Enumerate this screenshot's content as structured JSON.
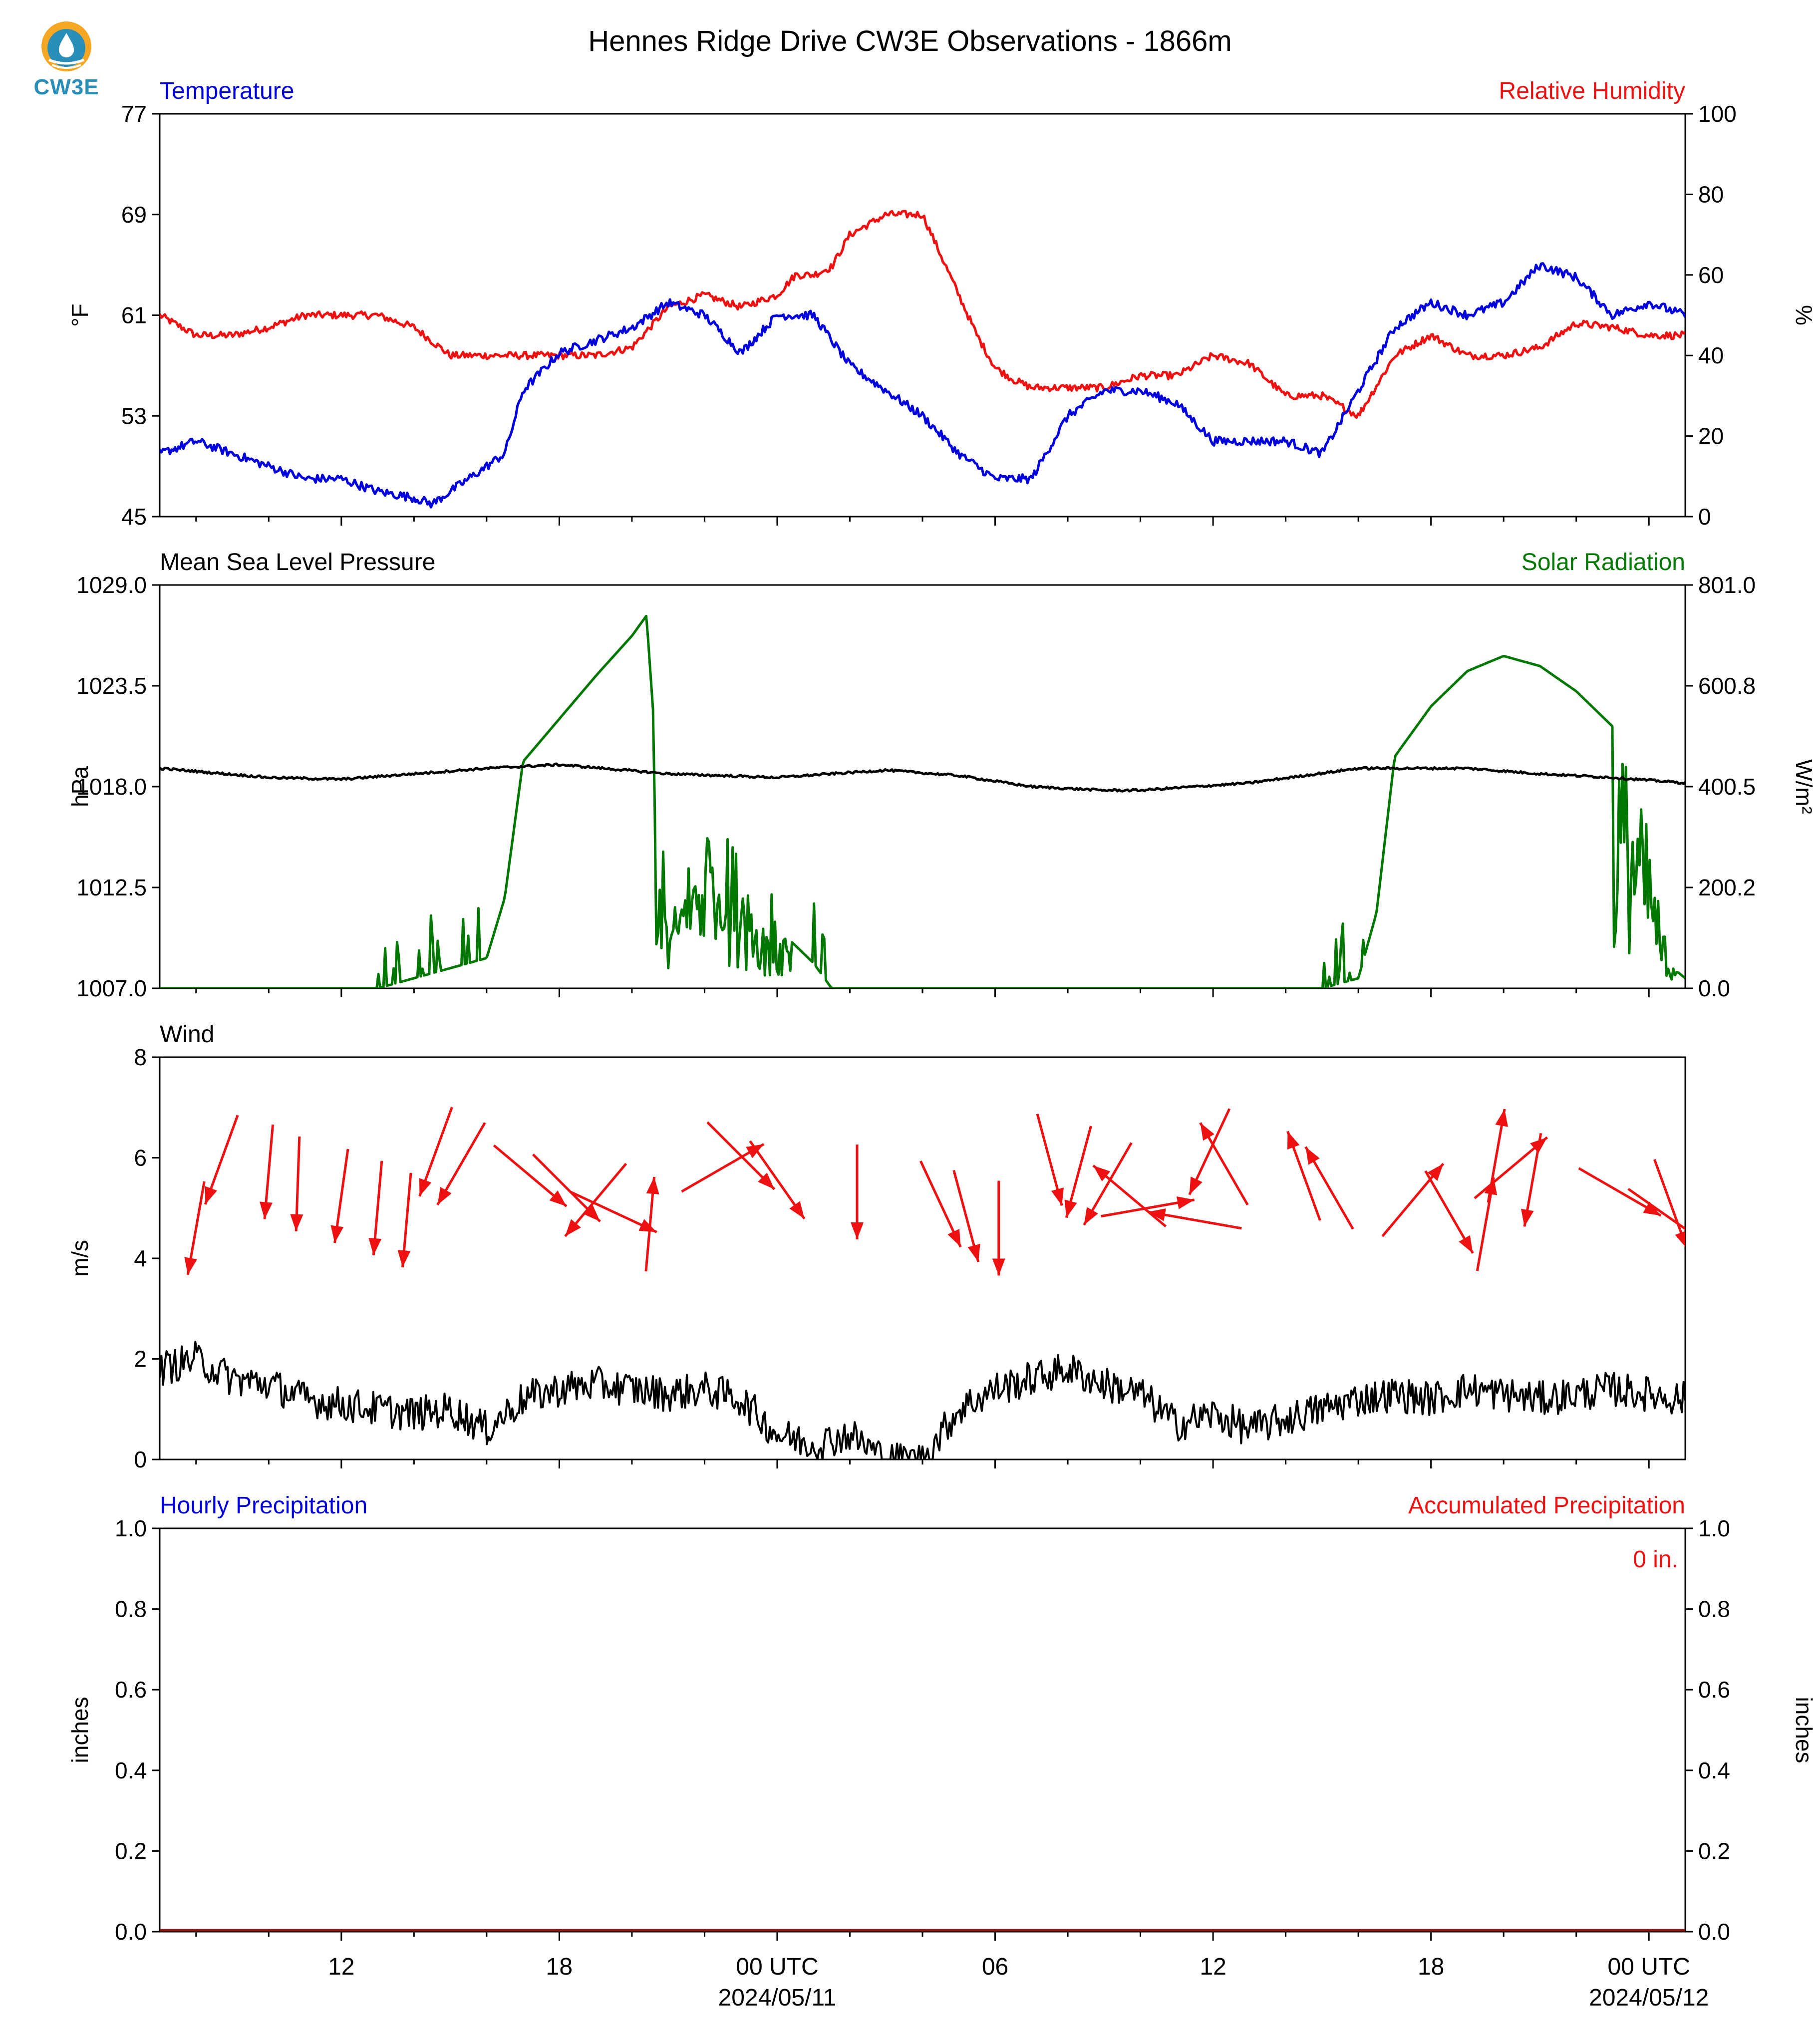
{
  "title": "Hennes Ridge Drive CW3E Observations - 1866m",
  "logo": {
    "text": "CW3E",
    "icon": "cw3e-drop-logo"
  },
  "colors": {
    "blue": "#0000dd",
    "red": "#ee1111",
    "green": "#007700",
    "black": "#000000"
  },
  "x_axis": {
    "ticks": [
      {
        "label": "12"
      },
      {
        "label": "18"
      },
      {
        "label": "00 UTC",
        "sublabel": "2024/05/11"
      },
      {
        "label": "06"
      },
      {
        "label": "12"
      },
      {
        "label": "18"
      },
      {
        "label": "00 UTC",
        "sublabel": "2024/05/12"
      }
    ]
  },
  "panels": {
    "temp": {
      "left_title": "Temperature",
      "right_title": "Relative Humidity",
      "ylabel_left": "°F",
      "ylabel_right": "%",
      "left_ticks": [
        "77",
        "69",
        "61",
        "53",
        "45"
      ],
      "right_ticks": [
        "100",
        "80",
        "60",
        "40",
        "20",
        "0"
      ]
    },
    "pressure": {
      "left_title": "Mean Sea Level Pressure",
      "right_title": "Solar Radiation",
      "ylabel_left": "hPa",
      "ylabel_right": "W/m²",
      "left_ticks": [
        "1029.0",
        "1023.5",
        "1018.0",
        "1012.5",
        "1007.0"
      ],
      "right_ticks": [
        "801.0",
        "600.8",
        "400.5",
        "200.2",
        "0.0"
      ]
    },
    "wind": {
      "left_title": "Wind",
      "ylabel_left": "m/s",
      "left_ticks": [
        "8",
        "6",
        "4",
        "2",
        "0"
      ]
    },
    "precip": {
      "left_title": "Hourly Precipitation",
      "right_title": "Accumulated Precipitation",
      "ylabel_left": "inches",
      "ylabel_right": "inches",
      "left_ticks": [
        "1.0",
        "0.8",
        "0.6",
        "0.4",
        "0.2",
        "0.0"
      ],
      "right_ticks": [
        "1.0",
        "0.8",
        "0.6",
        "0.4",
        "0.2",
        "0.0"
      ],
      "total_label": "0 in."
    }
  },
  "chart_data": [
    {
      "type": "line",
      "title": "Temperature",
      "ylabel": "°F",
      "ylim": [
        45,
        77
      ],
      "x_unit": "hours since 2024-05-10 07:00 UTC",
      "xlim": [
        0,
        42
      ],
      "series": [
        {
          "name": "Temperature",
          "color": "#0000dd",
          "axis": "left",
          "x": [
            0,
            1,
            2,
            3,
            4,
            5,
            6,
            7,
            7.5,
            8,
            9,
            9.5,
            10,
            11,
            12,
            13,
            14,
            15,
            16,
            17,
            18,
            19,
            20,
            21,
            22,
            23,
            24,
            25,
            26,
            27,
            28,
            29,
            30,
            31,
            32,
            33,
            34,
            35,
            36,
            37,
            38,
            39,
            40,
            41,
            42
          ],
          "y": [
            50,
            51,
            50,
            49,
            48,
            48,
            47,
            46.5,
            46,
            47,
            49,
            50,
            55,
            58,
            59,
            60,
            62,
            61,
            58,
            61,
            61,
            57,
            55,
            53,
            50,
            48,
            48,
            53,
            55,
            55,
            54,
            51,
            51,
            51,
            50,
            55,
            60,
            62,
            61,
            62,
            65,
            64,
            61,
            62,
            61
          ]
        },
        {
          "name": "Relative Humidity",
          "color": "#ee1111",
          "axis": "right",
          "x": [
            0,
            1,
            2,
            3,
            4,
            5,
            6,
            7,
            8,
            9,
            10,
            11,
            12,
            13,
            14,
            15,
            16,
            17,
            17.5,
            18,
            18.5,
            19,
            20,
            21,
            22,
            22.5,
            23,
            23.5,
            24,
            25,
            26,
            27,
            28,
            29,
            30,
            31,
            32,
            33,
            34,
            35,
            36,
            37,
            38,
            39,
            40,
            41,
            42
          ],
          "y": [
            50,
            45,
            45,
            47,
            50,
            50,
            50,
            47,
            40,
            40,
            40,
            40,
            40,
            42,
            52,
            55,
            52,
            55,
            60,
            60,
            62,
            70,
            75,
            75,
            55,
            45,
            37,
            34,
            32,
            32,
            32,
            35,
            35,
            40,
            38,
            30,
            30,
            25,
            40,
            45,
            40,
            40,
            42,
            48,
            47,
            45,
            45
          ]
        }
      ]
    },
    {
      "type": "line",
      "title": "Mean Sea Level Pressure / Solar Radiation",
      "x_unit": "hours since 2024-05-10 07:00 UTC",
      "xlim": [
        0,
        42
      ],
      "series": [
        {
          "name": "Mean Sea Level Pressure",
          "color": "#000000",
          "axis": "left",
          "unit": "hPa",
          "ylim": [
            1007.0,
            1029.0
          ],
          "x": [
            0,
            3,
            5,
            9,
            11,
            14,
            17,
            20,
            22,
            24,
            26,
            27,
            30,
            33,
            36,
            38,
            40,
            42
          ],
          "y": [
            1019.0,
            1018.5,
            1018.4,
            1019.0,
            1019.2,
            1018.7,
            1018.5,
            1018.9,
            1018.6,
            1018.0,
            1017.8,
            1017.8,
            1018.2,
            1019.0,
            1019.0,
            1018.7,
            1018.5,
            1018.2
          ]
        },
        {
          "name": "Solar Radiation",
          "color": "#007700",
          "axis": "right",
          "unit": "W/m²",
          "ylim": [
            0.0,
            801.0
          ],
          "x": [
            0,
            6,
            8,
            9,
            9.5,
            10,
            12,
            13,
            13.4,
            14,
            15,
            16,
            17,
            18,
            18.5,
            19,
            31,
            32,
            33,
            33.5,
            34,
            35,
            36,
            37,
            38,
            39,
            40,
            41,
            41.5,
            42
          ],
          "y": [
            0,
            0,
            40,
            60,
            180,
            450,
            620,
            700,
            740,
            120,
            350,
            260,
            120,
            50,
            0,
            0,
            0,
            0,
            20,
            150,
            460,
            560,
            630,
            660,
            640,
            590,
            520,
            300,
            50,
            20
          ]
        }
      ]
    },
    {
      "type": "line",
      "title": "Wind",
      "ylabel": "m/s",
      "ylim": [
        0,
        8
      ],
      "x_unit": "hours since 2024-05-10 07:00 UTC",
      "xlim": [
        0,
        42
      ],
      "series": [
        {
          "name": "Wind",
          "color": "#000000",
          "x": [
            0,
            1,
            2,
            3,
            4,
            5,
            6,
            7,
            8,
            9,
            10,
            11,
            12,
            13,
            14,
            15,
            16,
            17,
            18,
            19,
            20,
            21,
            22,
            23,
            24,
            25,
            26,
            27,
            28,
            29,
            30,
            31,
            32,
            33,
            34,
            35,
            36,
            37,
            38,
            39,
            40,
            41,
            42
          ],
          "y": [
            1.8,
            2.0,
            1.6,
            1.5,
            1.2,
            1.1,
            1.0,
            0.9,
            1.0,
            0.6,
            1.2,
            1.4,
            1.5,
            1.4,
            1.3,
            1.4,
            1.2,
            0.5,
            0.3,
            0.5,
            0,
            0,
            1.0,
            1.4,
            1.6,
            1.8,
            1.5,
            1.3,
            0.7,
            0.9,
            0.6,
            0.8,
            1.0,
            1.2,
            1.3,
            1.2,
            1.4,
            1.3,
            1.2,
            1.3,
            1.4,
            1.3,
            1.2
          ]
        }
      ],
      "arrows_note": "wind direction arrows plotted above the speed trace"
    },
    {
      "type": "bar",
      "title": "Hourly Precipitation",
      "ylabel": "inches",
      "ylim": [
        0.0,
        1.0
      ],
      "series": [
        {
          "name": "Hourly Precipitation",
          "values": [
            0
          ]
        },
        {
          "name": "Accumulated Precipitation",
          "values": [
            0
          ]
        }
      ],
      "annotation": "0 in."
    }
  ]
}
